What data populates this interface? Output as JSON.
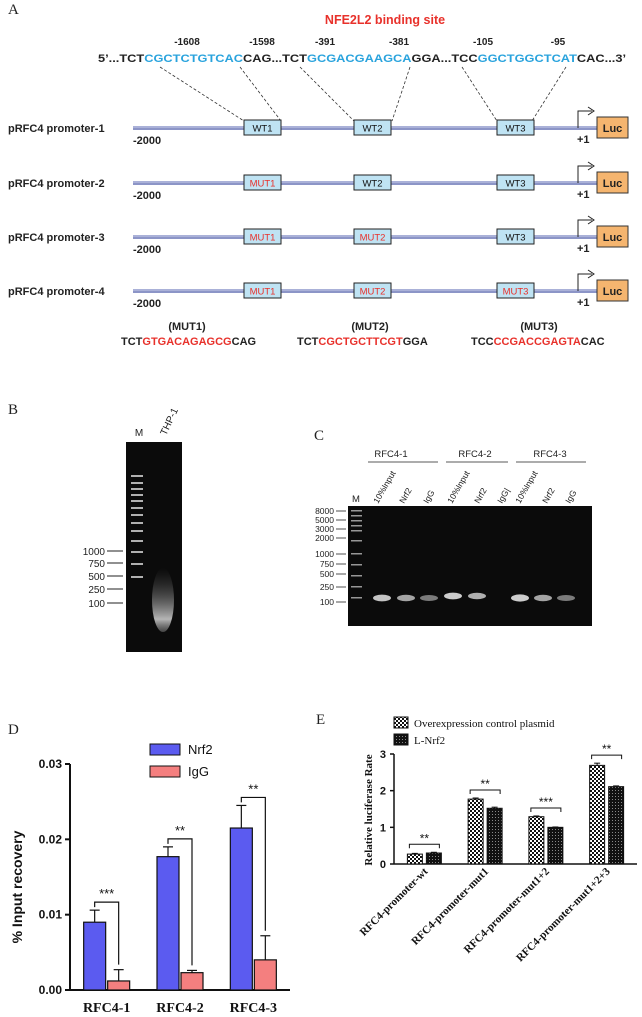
{
  "panel_labels": {
    "a": "A",
    "b": "B",
    "c": "C",
    "d": "D",
    "e": "E"
  },
  "panel_a": {
    "binding_title": "NFE2L2 binding site",
    "sequence": {
      "seg1": "5’...TCT",
      "site1": "CGCTCTGTCAC",
      "seg2": "CAG...TCT",
      "site2": "GCGACGAAGCA",
      "seg3": "GGA...TCC",
      "site3": "GGCTGGCTCAT",
      "seg4": "CAC...3’"
    },
    "positions": [
      "-1608",
      "-1598",
      "-391",
      "-381",
      "-105",
      "-95"
    ],
    "constructs": [
      {
        "name": "pRFC4 promoter-1",
        "boxes": [
          "WT1",
          "WT2",
          "WT3"
        ]
      },
      {
        "name": "pRFC4 promoter-2",
        "boxes": [
          "MUT1",
          "WT2",
          "WT3"
        ]
      },
      {
        "name": "pRFC4 promoter-3",
        "boxes": [
          "MUT1",
          "MUT2",
          "WT3"
        ]
      },
      {
        "name": "pRFC4 promoter-4",
        "boxes": [
          "MUT1",
          "MUT2",
          "MUT3"
        ]
      }
    ],
    "start_label": "-2000",
    "tss_label": "+1",
    "reporter": "Luc",
    "mutants": [
      {
        "title": "(MUT1)",
        "pre": "TCT",
        "mut": "GTGACAGAGCG",
        "post": "CAG"
      },
      {
        "title": "(MUT2)",
        "pre": "TCT",
        "mut": "CGCTGCTTCGT",
        "post": "GGA"
      },
      {
        "title": "(MUT3)",
        "pre": "TCC",
        "mut": "CCGACCGAGTA",
        "post": "CAC"
      }
    ],
    "colors": {
      "site": "#29a3dd",
      "mut": "#e8312b",
      "box_fill": "#bfe3f3",
      "luc_fill": "#f5b56f",
      "line": "#8c95c7"
    }
  },
  "panel_b": {
    "lanes": [
      "M",
      "THP-1"
    ],
    "marker_labels": [
      "1000",
      "750",
      "500",
      "250",
      "100"
    ]
  },
  "panel_c": {
    "groups": [
      "RFC4-1",
      "RFC4-2",
      "RFC4-3"
    ],
    "marker_lane": "M",
    "lanes": [
      "10%Input",
      "Nrf2",
      "IgG",
      "10%Input",
      "Nrf2",
      "IgG|",
      "10%Input",
      "Nrf2",
      "IgG"
    ],
    "marker_labels": [
      "8000",
      "5000",
      "3000",
      "2000",
      "1000",
      "750",
      "500",
      "250",
      "100"
    ]
  },
  "chart_data": [
    {
      "type": "bar",
      "categories": [
        "RFC4-1",
        "RFC4-2",
        "RFC4-3"
      ],
      "series": [
        {
          "name": "Nrf2",
          "values": [
            0.009,
            0.0177,
            0.0215
          ],
          "errors": [
            0.0016,
            0.0013,
            0.003
          ]
        },
        {
          "name": "IgG",
          "values": [
            0.0012,
            0.0023,
            0.004
          ],
          "errors": [
            0.0015,
            0.0003,
            0.0032
          ]
        }
      ],
      "ylabel": "% Input recovery",
      "ylim": [
        0,
        0.03
      ],
      "yticks": [
        "0.00",
        "0.01",
        "0.02",
        "0.03"
      ],
      "significance": [
        "***",
        "**",
        "**"
      ],
      "legend_position": "top-right",
      "colors": {
        "Nrf2": "#5b5bf0",
        "IgG": "#f47f7f"
      }
    },
    {
      "type": "bar",
      "categories": [
        "RFC4-promoter-wt",
        "RFC4-promoter-mut1",
        "RFC4-promoter-mut1+2",
        "RFC4-promoter-mut1+2+3"
      ],
      "series": [
        {
          "name": "Overexpression control plasmid",
          "values": [
            0.27,
            1.77,
            1.29,
            2.69
          ],
          "errors": [
            0.02,
            0.03,
            0.02,
            0.06
          ]
        },
        {
          "name": "L-Nrf2",
          "values": [
            0.3,
            1.52,
            1.0,
            2.11
          ],
          "errors": [
            0.02,
            0.03,
            0.01,
            0.02
          ]
        }
      ],
      "ylabel": "Relative luciferase Rate",
      "ylim": [
        0,
        3
      ],
      "yticks": [
        "0",
        "1",
        "2",
        "3"
      ],
      "significance": [
        "**",
        "**",
        "***",
        "**"
      ],
      "legend_position": "top"
    }
  ]
}
